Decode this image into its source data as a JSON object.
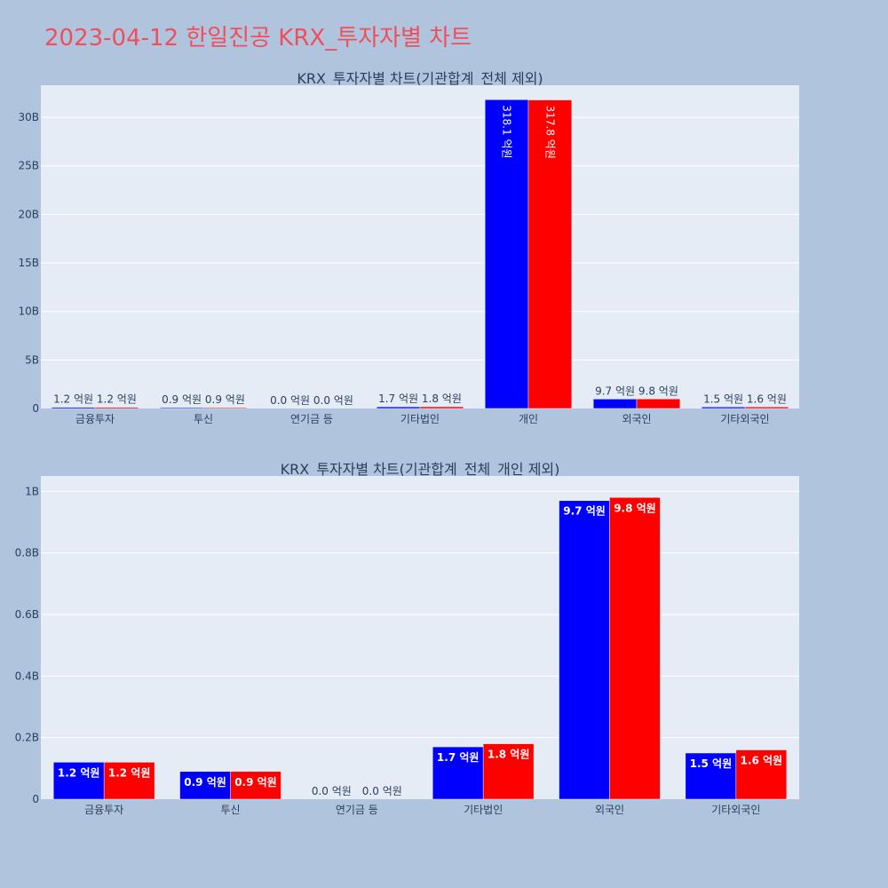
{
  "page": {
    "title": "2023-04-12 한일진공 KRX_투자자별 차트"
  },
  "colors": {
    "background": "#b0c4de",
    "plot_bg": "#e5ecf6",
    "grid": "#ffffff",
    "title": "#ef4f5b",
    "text": "#2a3f5f",
    "series_a": "#0000ff",
    "series_b": "#ff0000"
  },
  "chart_data": [
    {
      "type": "bar",
      "title": "KRX_투자자별 차트(기관합계_전체 제외)",
      "categories": [
        "금융투자",
        "투신",
        "연기금 등",
        "기타법인",
        "개인",
        "외국인",
        "기타외국인"
      ],
      "series": [
        {
          "color": "#0000ff",
          "values": [
            0.12,
            0.09,
            0.0,
            0.17,
            31.81,
            0.97,
            0.15
          ],
          "labels": [
            "1.2 억원",
            "0.9 억원",
            "0.0 억원",
            "1.7 억원",
            "318.1 억원",
            "9.7 억원",
            "1.5 억원"
          ]
        },
        {
          "color": "#ff0000",
          "values": [
            0.12,
            0.09,
            0.0,
            0.18,
            31.78,
            0.98,
            0.16
          ],
          "labels": [
            "1.2 억원",
            "0.9 억원",
            "0.0 억원",
            "1.8 억원",
            "317.8 억원",
            "9.8 억원",
            "1.6 억원"
          ]
        }
      ],
      "ylim": [
        0,
        33.3
      ],
      "yticks": [
        0,
        5,
        10,
        15,
        20,
        25,
        30
      ],
      "ytick_labels": [
        "0",
        "5B",
        "10B",
        "15B",
        "20B",
        "25B",
        "30B"
      ],
      "grid": true,
      "label_position": "auto"
    },
    {
      "type": "bar",
      "title": "KRX_투자자별 차트(기관합계_전체_개인 제외)",
      "categories": [
        "금융투자",
        "투신",
        "연기금 등",
        "기타법인",
        "외국인",
        "기타외국인"
      ],
      "series": [
        {
          "color": "#0000ff",
          "values": [
            0.12,
            0.09,
            0.0,
            0.17,
            0.97,
            0.15
          ],
          "labels": [
            "1.2 억원",
            "0.9 억원",
            "0.0 억원",
            "1.7 억원",
            "9.7 억원",
            "1.5 억원"
          ]
        },
        {
          "color": "#ff0000",
          "values": [
            0.12,
            0.09,
            0.0,
            0.18,
            0.98,
            0.16
          ],
          "labels": [
            "1.2 억원",
            "0.9 억원",
            "0.0 억원",
            "1.8 억원",
            "9.8 억원",
            "1.6 억원"
          ]
        }
      ],
      "ylim": [
        0,
        1.05
      ],
      "yticks": [
        0,
        0.2,
        0.4,
        0.6,
        0.8,
        1.0
      ],
      "ytick_labels": [
        "0",
        "0.2B",
        "0.4B",
        "0.6B",
        "0.8B",
        "1B"
      ],
      "grid": true,
      "label_position": "inside"
    }
  ]
}
